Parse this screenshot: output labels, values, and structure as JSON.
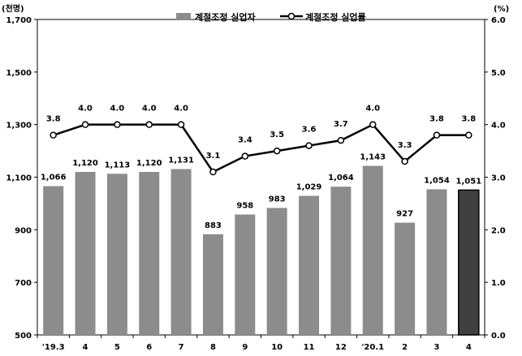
{
  "chart_data": {
    "type": "bar",
    "categories": [
      "'19.3",
      "4",
      "5",
      "6",
      "7",
      "8",
      "9",
      "10",
      "11",
      "12",
      "'20.1",
      "2",
      "3",
      "4"
    ],
    "series": [
      {
        "name": "계절조정 실업자",
        "type": "bar",
        "axis": "left",
        "values": [
          1066,
          1120,
          1113,
          1120,
          1131,
          883,
          958,
          983,
          1029,
          1064,
          1143,
          927,
          1054,
          1051
        ],
        "labels": [
          "1,066",
          "1,120",
          "1,113",
          "1,120",
          "1,131",
          "883",
          "958",
          "983",
          "1,029",
          "1,064",
          "1,143",
          "927",
          "1,054",
          "1,051"
        ],
        "color": "#8c8c8c",
        "highlight_color": "#404040",
        "highlight_index": 13
      },
      {
        "name": "계절조정 실업률",
        "type": "line",
        "axis": "right",
        "values": [
          3.8,
          4.0,
          4.0,
          4.0,
          4.0,
          3.1,
          3.4,
          3.5,
          3.6,
          3.7,
          4.0,
          3.3,
          3.8,
          3.8
        ],
        "labels": [
          "3.8",
          "4.0",
          "4.0",
          "4.0",
          "4.0",
          "3.1",
          "3.4",
          "3.5",
          "3.6",
          "3.7",
          "4.0",
          "3.3",
          "3.8",
          "3.8"
        ],
        "color": "#000000"
      }
    ],
    "y_left": {
      "unit": "(천명)",
      "ylim": [
        500,
        1700
      ],
      "ticks": [
        500,
        700,
        900,
        1100,
        1300,
        1500,
        1700
      ],
      "tick_labels": [
        "500",
        "700",
        "900",
        "1,100",
        "1,300",
        "1,500",
        "1,700"
      ]
    },
    "y_right": {
      "unit": "(%)",
      "ylim": [
        0,
        6
      ],
      "ticks": [
        0,
        1,
        2,
        3,
        4,
        5,
        6
      ],
      "tick_labels": [
        "0.0",
        "1.0",
        "2.0",
        "3.0",
        "4.0",
        "5.0",
        "6.0"
      ]
    },
    "grid": false,
    "legend": "top-center"
  }
}
